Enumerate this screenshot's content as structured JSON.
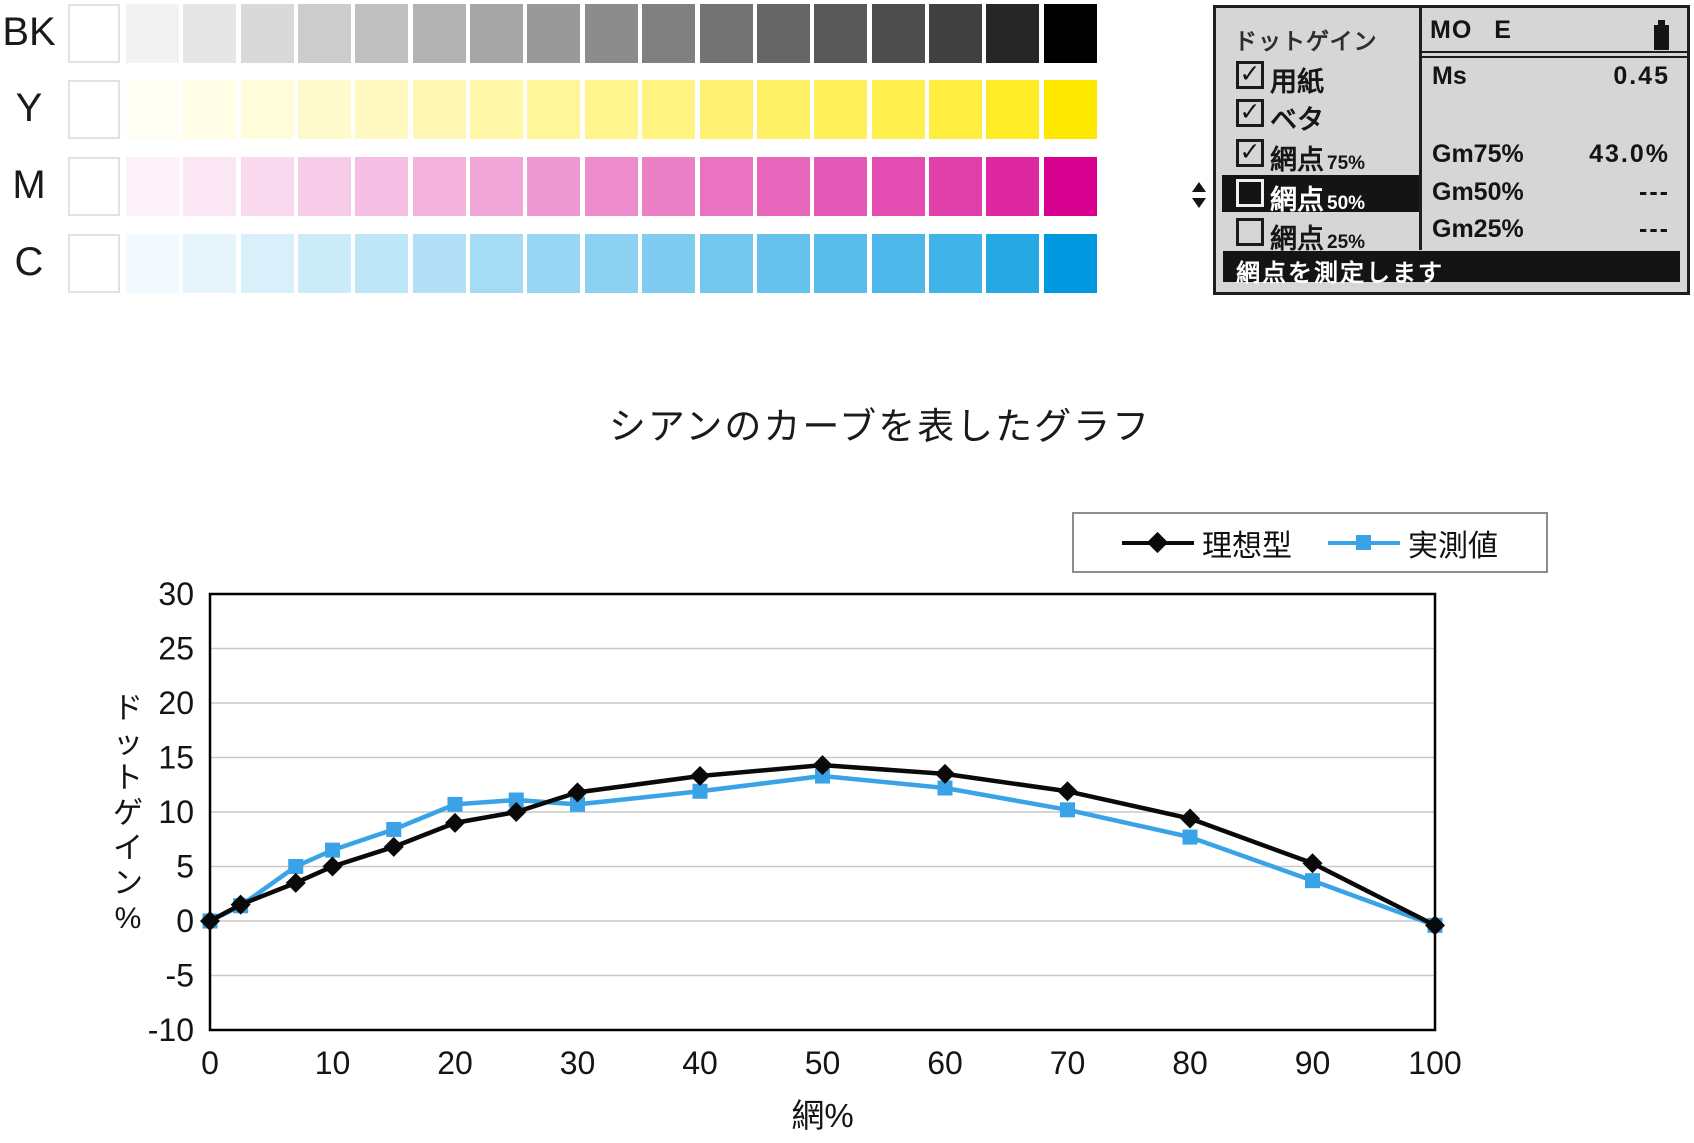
{
  "strips": {
    "rows": [
      {
        "label": "BK",
        "color": "#000000"
      },
      {
        "label": "Y",
        "color": "#ffe800"
      },
      {
        "label": "M",
        "color": "#d7008f"
      },
      {
        "label": "C",
        "color": "#0099e0"
      }
    ],
    "steps_percent": [
      5,
      10,
      15,
      20,
      25,
      30,
      35,
      40,
      45,
      50,
      55,
      60,
      65,
      70,
      75,
      85,
      100
    ]
  },
  "device_panel": {
    "menu_title": "ドットゲイン",
    "items": [
      {
        "label": "用紙",
        "suffix": "",
        "checked": true,
        "selected": false
      },
      {
        "label": "ベタ",
        "suffix": "",
        "checked": true,
        "selected": false
      },
      {
        "label": "網点",
        "suffix": "75%",
        "checked": true,
        "selected": false
      },
      {
        "label": "網点",
        "suffix": "50%",
        "checked": false,
        "selected": true
      },
      {
        "label": "網点",
        "suffix": "25%",
        "checked": false,
        "selected": false
      }
    ],
    "header": "MO E",
    "readings": [
      {
        "name": "Ms",
        "value": "0.45"
      },
      {
        "name": "Gm75%",
        "value": "43.0%"
      },
      {
        "name": "Gm50%",
        "value": "---"
      },
      {
        "name": "Gm25%",
        "value": "---"
      }
    ],
    "status_text": "網点を測定します",
    "icons": {
      "battery": "battery-full-icon",
      "selector": "up-down-arrows-icon",
      "check_glyph": "✓"
    }
  },
  "chart_data": {
    "type": "line",
    "title": "シアンのカーブを表したグラフ",
    "xlabel": "網%",
    "ylabel": "ドットゲイン%",
    "xlim": [
      0,
      100
    ],
    "ylim": [
      -10,
      30
    ],
    "xticks": [
      0,
      10,
      20,
      30,
      40,
      50,
      60,
      70,
      80,
      90,
      100
    ],
    "yticks": [
      30,
      25,
      20,
      15,
      10,
      5,
      0,
      -5,
      -10
    ],
    "grid": true,
    "legend_position": "top-right",
    "x": [
      0,
      2.5,
      7,
      10,
      15,
      20,
      25,
      30,
      40,
      50,
      60,
      70,
      80,
      90,
      100
    ],
    "series": [
      {
        "name": "理想型",
        "color": "#0a0a0a",
        "marker": "diamond",
        "values": [
          0,
          1.5,
          3.5,
          5.0,
          6.8,
          9.0,
          10.0,
          11.8,
          13.3,
          14.3,
          13.5,
          11.9,
          9.4,
          5.3,
          -0.4
        ]
      },
      {
        "name": "実測値",
        "color": "#3aa2e6",
        "marker": "square",
        "values": [
          0,
          1.4,
          5.0,
          6.5,
          8.4,
          10.7,
          11.1,
          10.7,
          11.9,
          13.3,
          12.2,
          10.2,
          7.7,
          3.7,
          -0.4
        ]
      }
    ]
  }
}
